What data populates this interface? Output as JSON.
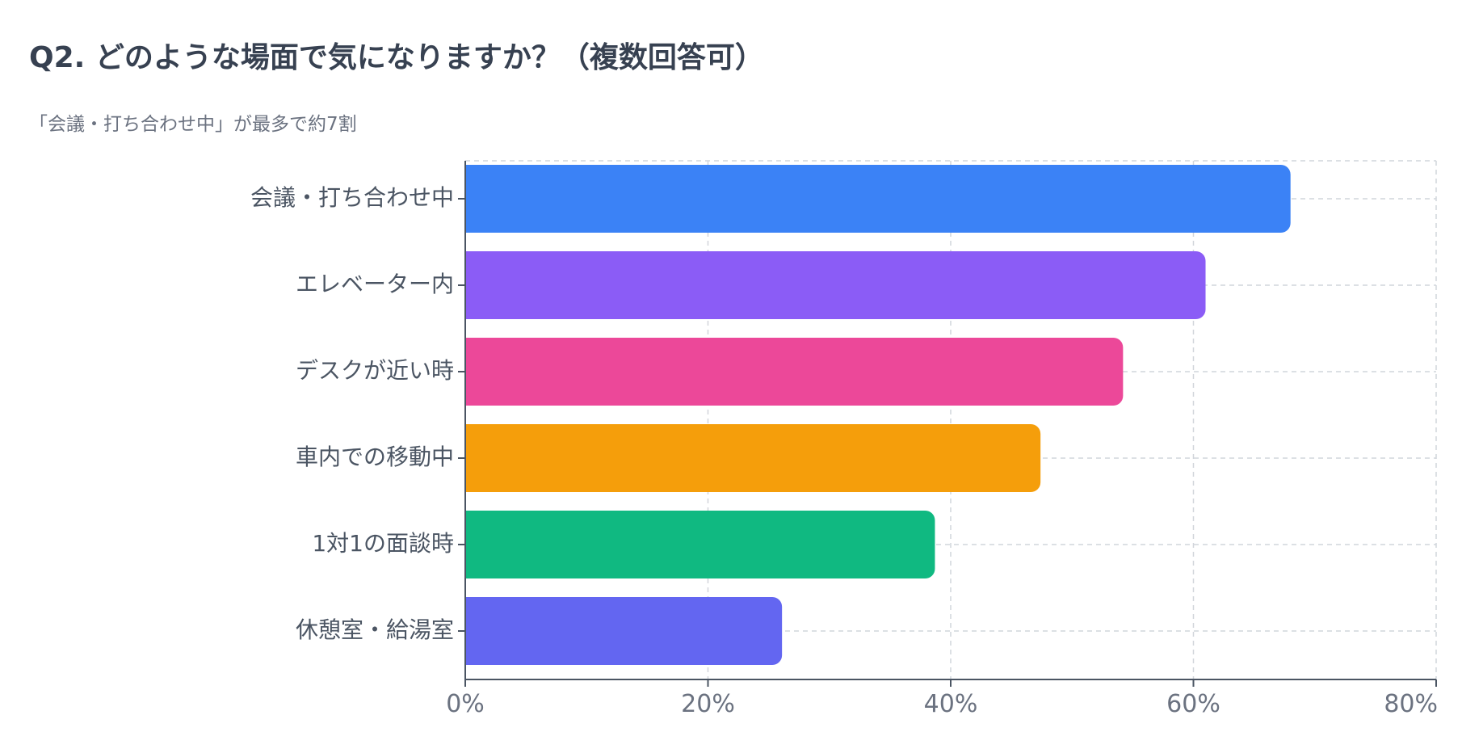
{
  "title": "Q2. どのような場面で気になりますか？（複数回答可）",
  "subtitle": "「会議・打ち合わせ中」が最多で約7割",
  "chart_data": {
    "type": "bar",
    "orientation": "horizontal",
    "title": "Q2. どのような場面で気になりますか？（複数回答可）",
    "subtitle": "「会議・打ち合わせ中」が最多で約7割",
    "xlabel": "",
    "ylabel": "",
    "categories": [
      "会議・打ち合わせ中",
      "エレベーター内",
      "デスクが近い時",
      "車内での移動中",
      "1対1の面談時",
      "休憩室・給湯室"
    ],
    "values": [
      68,
      61,
      54.2,
      47.4,
      38.7,
      26.1
    ],
    "colors": [
      "#3b82f6",
      "#8b5cf6",
      "#ec4899",
      "#f59e0b",
      "#10b981",
      "#6366f1"
    ],
    "xlim": [
      0,
      80
    ],
    "ticks": [
      0,
      20,
      40,
      60,
      80
    ],
    "tick_labels": [
      "0%",
      "20%",
      "40%",
      "60%",
      "80%"
    ],
    "grid": true,
    "legend": "none"
  }
}
